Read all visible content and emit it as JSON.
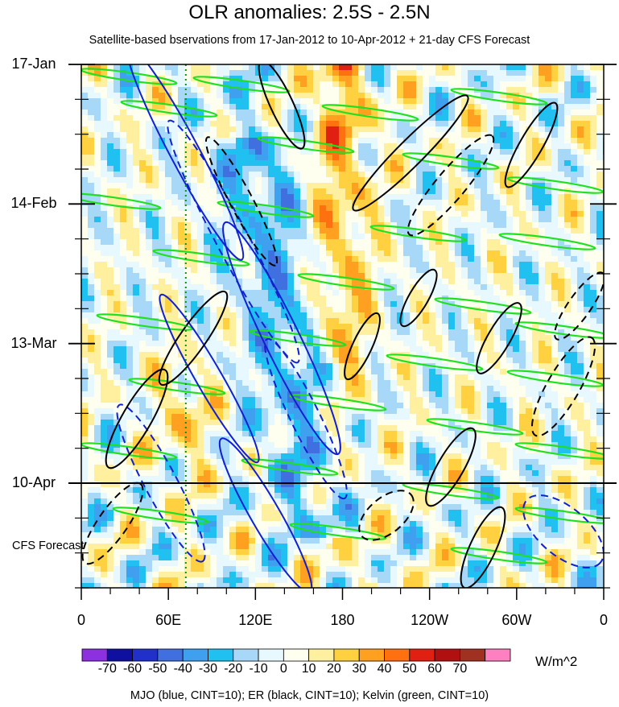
{
  "chart_data": {
    "type": "heatmap",
    "title": "OLR anomalies: 2.5S - 2.5N",
    "subtitle": "Satellite-based bservations from 17-Jan-2012 to 10-Apr-2012 + 21-day CFS Forecast",
    "y_axis": {
      "tick_labels": [
        "17-Jan",
        "14-Feb",
        "13-Mar",
        "10-Apr"
      ],
      "tick_days_from_top": [
        0,
        28,
        56,
        84
      ],
      "range_days": [
        0,
        105
      ],
      "reversed": true,
      "forecast_label": "CFS\nForecast"
    },
    "x_axis": {
      "tick_labels": [
        "0",
        "60E",
        "120E",
        "180",
        "120W",
        "60W",
        "0"
      ],
      "tick_lon": [
        0,
        60,
        120,
        180,
        240,
        300,
        360
      ],
      "range_lon": [
        0,
        360
      ]
    },
    "observation_end": "10-Apr-2012",
    "observation_end_day": 84,
    "reference_longitude": 72,
    "colorbar": {
      "units": "W/m^2",
      "tick_labels": [
        "-70",
        "-60",
        "-50",
        "-40",
        "-30",
        "-20",
        "-10",
        "0",
        "10",
        "20",
        "30",
        "40",
        "50",
        "60",
        "70"
      ],
      "colors": [
        "#8c30e0",
        "#1010a0",
        "#2030c8",
        "#4070e0",
        "#3fa0f0",
        "#20c0f0",
        "#a8d8f8",
        "#e8f8ff",
        "#fffff0",
        "#fff0a0",
        "#ffd040",
        "#ffa020",
        "#ff7010",
        "#e02010",
        "#b01010",
        "#a03020",
        "#ff80c0"
      ]
    },
    "contour_legend": "MJO (blue, CINT=10); ER (black, CINT=10); Kelvin (green, CINT=10)",
    "series": [
      {
        "name": "MJO",
        "color": "#1020d0"
      },
      {
        "name": "ER",
        "color": "#000000"
      },
      {
        "name": "Kelvin",
        "color": "#20e020"
      }
    ]
  }
}
